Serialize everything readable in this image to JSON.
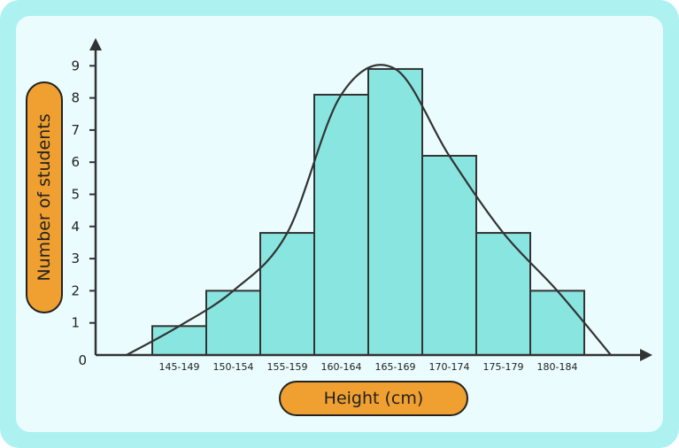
{
  "chart_data": {
    "type": "bar",
    "subtype": "histogram-with-curve",
    "categories": [
      "145-149",
      "150-154",
      "155-159",
      "160-164",
      "165-169",
      "170-174",
      "175-179",
      "180-184"
    ],
    "values": [
      0.9,
      2,
      3.8,
      8.1,
      8.9,
      6.2,
      3.8,
      2
    ],
    "xlabel": "Height (cm)",
    "ylabel": "Number of students",
    "ylim": [
      0,
      9
    ],
    "yticks": [
      "0",
      "1",
      "2",
      "3",
      "4",
      "5",
      "6",
      "7",
      "8",
      "9"
    ],
    "grid": false,
    "legend": "none",
    "bar_color": "#88e5e0",
    "curve_color": "#333333",
    "label_pill_color": "#f0a030"
  }
}
